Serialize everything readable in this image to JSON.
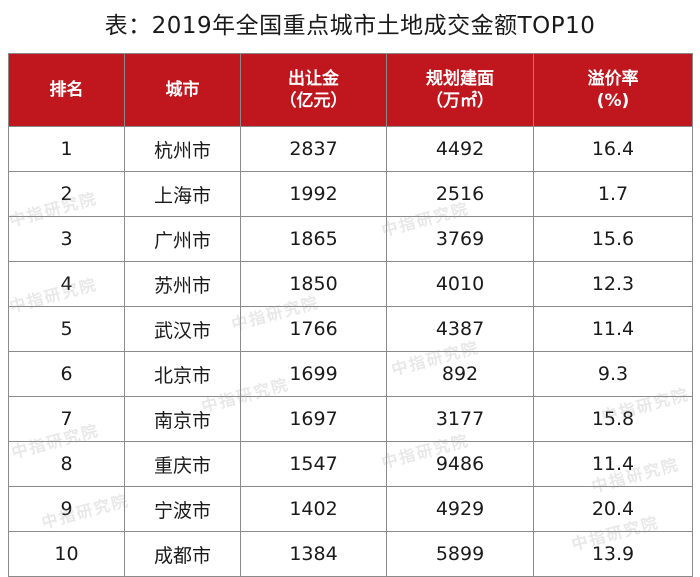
{
  "title": "表：2019年全国重点城市土地成交金额TOP10",
  "header_color": "#c0161e",
  "headers": [
    {
      "line1": "排名",
      "line2": ""
    },
    {
      "line1": "城市",
      "line2": ""
    },
    {
      "line1": "出让金",
      "line2": "（亿元）"
    },
    {
      "line1": "规划建面",
      "line2": "（万㎡）"
    },
    {
      "line1": "溢价率",
      "line2": "(%)"
    }
  ],
  "rows": [
    {
      "rank": "1",
      "city": "杭州市",
      "amount": "2837",
      "area": "4492",
      "premium": "16.4"
    },
    {
      "rank": "2",
      "city": "上海市",
      "amount": "1992",
      "area": "2516",
      "premium": "1.7"
    },
    {
      "rank": "3",
      "city": "广州市",
      "amount": "1865",
      "area": "3769",
      "premium": "15.6"
    },
    {
      "rank": "4",
      "city": "苏州市",
      "amount": "1850",
      "area": "4010",
      "premium": "12.3"
    },
    {
      "rank": "5",
      "city": "武汉市",
      "amount": "1766",
      "area": "4387",
      "premium": "11.4"
    },
    {
      "rank": "6",
      "city": "北京市",
      "amount": "1699",
      "area": "892",
      "premium": "9.3"
    },
    {
      "rank": "7",
      "city": "南京市",
      "amount": "1697",
      "area": "3177",
      "premium": "15.8"
    },
    {
      "rank": "8",
      "city": "重庆市",
      "amount": "1547",
      "area": "9486",
      "premium": "11.4"
    },
    {
      "rank": "9",
      "city": "宁波市",
      "amount": "1402",
      "area": "4929",
      "premium": "20.4"
    },
    {
      "rank": "10",
      "city": "成都市",
      "amount": "1384",
      "area": "5899",
      "premium": "13.9"
    }
  ],
  "watermark": "中指研究院"
}
